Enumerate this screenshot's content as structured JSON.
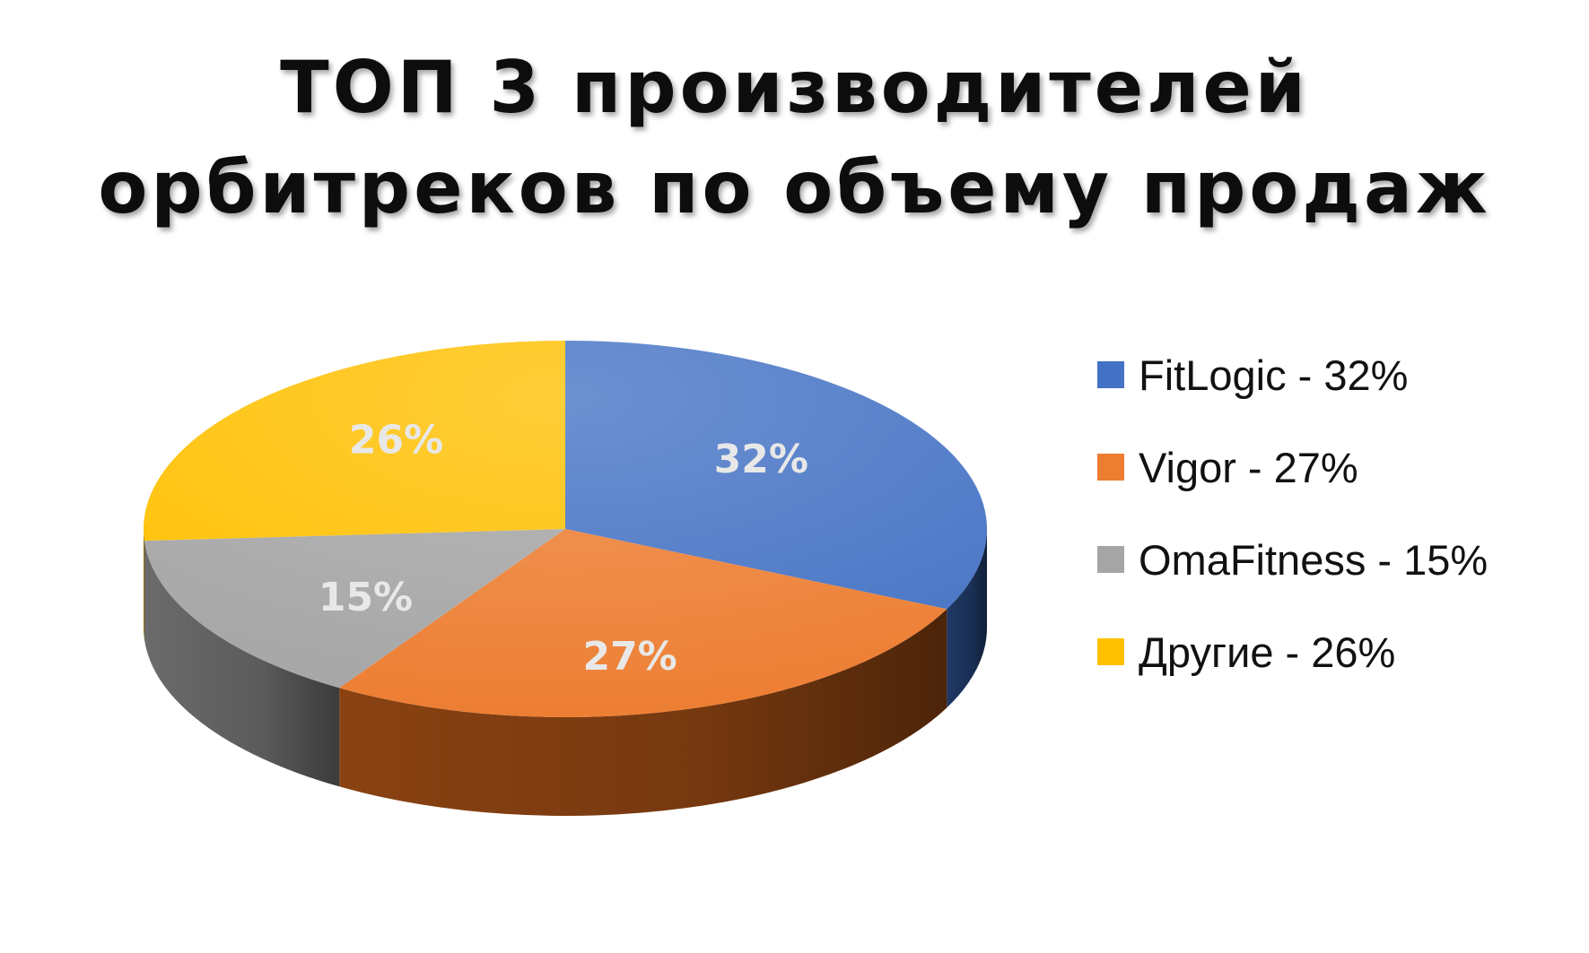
{
  "title": {
    "line1": "ТОП 3 производителей",
    "line2": "орбитреков по объему продаж"
  },
  "chart_data": {
    "type": "pie",
    "style": "3d",
    "title": "ТОП 3 производителей орбитреков по объему продаж",
    "categories": [
      "FitLogic",
      "Vigor",
      "OmaFitness",
      "Другие"
    ],
    "values": [
      32,
      27,
      15,
      26
    ],
    "data_labels": [
      "32%",
      "27%",
      "15%",
      "26%"
    ],
    "legend": [
      "FitLogic - 32%",
      "Vigor - 27%",
      "OmaFitness - 15%",
      "Другие - 26%"
    ],
    "legend_position": "right",
    "colors": [
      "#4472C4",
      "#ED7D31",
      "#A5A5A5",
      "#FFC000"
    ],
    "side_colors": [
      "#1F3864",
      "#8A4212",
      "#6B6B6B",
      "#A67C00"
    ]
  }
}
